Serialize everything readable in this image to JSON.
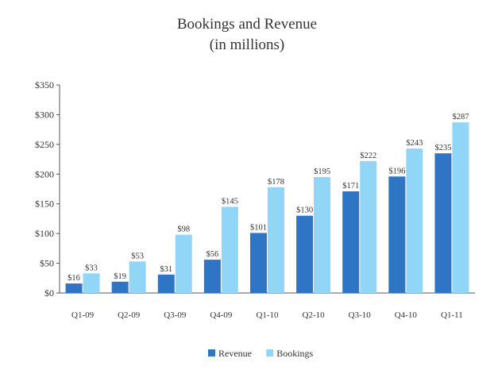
{
  "chart_data": {
    "type": "bar",
    "title": "Bookings and Revenue",
    "subtitle": "(in millions)",
    "xlabel": "",
    "ylabel": "",
    "categories": [
      "Q1-09",
      "Q2-09",
      "Q3-09",
      "Q4-09",
      "Q1-10",
      "Q2-10",
      "Q3-10",
      "Q4-10",
      "Q1-11"
    ],
    "series": [
      {
        "name": "Revenue",
        "color": "#2e75c6",
        "values": [
          16,
          19,
          31,
          56,
          101,
          130,
          171,
          196,
          235
        ],
        "labels": [
          "$16",
          "$19",
          "$31",
          "$56",
          "$101",
          "$130",
          "$171",
          "$196",
          "$235"
        ]
      },
      {
        "name": "Bookings",
        "color": "#92d6f7",
        "values": [
          33,
          53,
          98,
          145,
          178,
          195,
          222,
          243,
          287
        ],
        "labels": [
          "$33",
          "$53",
          "$98",
          "$145",
          "$178",
          "$195",
          "$222",
          "$243",
          "$287"
        ]
      }
    ],
    "ylim": [
      0,
      350
    ],
    "yticks": [
      0,
      50,
      100,
      150,
      200,
      250,
      300,
      350
    ],
    "ytick_labels": [
      "$0",
      "$50",
      "$100",
      "$150",
      "$200",
      "$250",
      "$300",
      "$350"
    ],
    "grid": false,
    "legend_position": "bottom-center"
  }
}
